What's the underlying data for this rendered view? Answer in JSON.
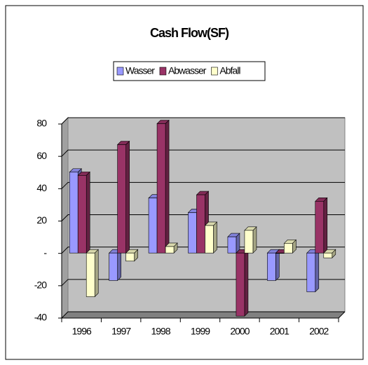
{
  "chart_data": {
    "type": "bar3d",
    "title": "Cash Flow(SF)",
    "categories": [
      "1996",
      "1997",
      "1998",
      "1999",
      "2000",
      "2001",
      "2002"
    ],
    "series": [
      {
        "name": "Wasser",
        "color": "#9999ff",
        "values": [
          50,
          -17,
          34,
          25,
          10,
          -17,
          -24
        ]
      },
      {
        "name": "Abwasser",
        "color": "#993366",
        "values": [
          48,
          67,
          80,
          36,
          -39,
          0,
          32
        ]
      },
      {
        "name": "Abfall",
        "color": "#ffffcc",
        "values": [
          -27,
          -5,
          4,
          17,
          14,
          6,
          -3
        ]
      }
    ],
    "ylim": [
      -40,
      80
    ],
    "yticks": [
      -40,
      -20,
      {
        "value": 0,
        "label": "-"
      },
      20,
      40,
      60,
      80
    ],
    "grid": true,
    "legend": "top"
  }
}
